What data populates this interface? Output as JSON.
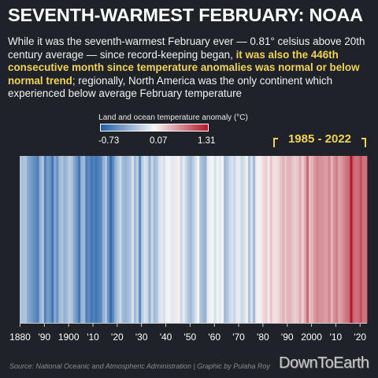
{
  "title": "SEVENTH-WARMEST FEBRUARY: NOAA",
  "subtitle": {
    "part1": "While it was the seventh-warmest February ever — 0.81° celsius above 20th century average — since record-keeping began, ",
    "highlight": "it was also the 446th consecutive month since temperature anomalies was normal or below normal trend",
    "part2": "; regionally, North America was the only continent which experienced below average February temperature"
  },
  "colors": {
    "cold": "#1f5fa8",
    "neutral": "#f7f7f7",
    "warm": "#b2182b",
    "highlight": "#f0d35a",
    "background": "#1f2329"
  },
  "chart_data": {
    "type": "heatmap",
    "legend_title": "Land and ocean temperature anomaly (°C)",
    "scale": {
      "min": -0.73,
      "mid": 0.07,
      "max": 1.31,
      "min_label": "-0.73",
      "mid_label": "0.07",
      "max_label": "1.31"
    },
    "period_label": "1985 - 2022",
    "period_range": [
      1985,
      2022
    ],
    "x_range": [
      1880,
      2022
    ],
    "x_ticks": [
      {
        "year": 1880,
        "label": "1880"
      },
      {
        "year": 1890,
        "label": "'90"
      },
      {
        "year": 1900,
        "label": "1900"
      },
      {
        "year": 1910,
        "label": "'10"
      },
      {
        "year": 1920,
        "label": "'20"
      },
      {
        "year": 1930,
        "label": "'30"
      },
      {
        "year": 1940,
        "label": "'40"
      },
      {
        "year": 1950,
        "label": "'50"
      },
      {
        "year": 1960,
        "label": "'60"
      },
      {
        "year": 1970,
        "label": "'70"
      },
      {
        "year": 1980,
        "label": "'80"
      },
      {
        "year": 1990,
        "label": "'90"
      },
      {
        "year": 2000,
        "label": "2000"
      },
      {
        "year": 2010,
        "label": "'10"
      },
      {
        "year": 2020,
        "label": "'20"
      }
    ],
    "years": [
      1880,
      1881,
      1882,
      1883,
      1884,
      1885,
      1886,
      1887,
      1888,
      1889,
      1890,
      1891,
      1892,
      1893,
      1894,
      1895,
      1896,
      1897,
      1898,
      1899,
      1900,
      1901,
      1902,
      1903,
      1904,
      1905,
      1906,
      1907,
      1908,
      1909,
      1910,
      1911,
      1912,
      1913,
      1914,
      1915,
      1916,
      1917,
      1918,
      1919,
      1920,
      1921,
      1922,
      1923,
      1924,
      1925,
      1926,
      1927,
      1928,
      1929,
      1930,
      1931,
      1932,
      1933,
      1934,
      1935,
      1936,
      1937,
      1938,
      1939,
      1940,
      1941,
      1942,
      1943,
      1944,
      1945,
      1946,
      1947,
      1948,
      1949,
      1950,
      1951,
      1952,
      1953,
      1954,
      1955,
      1956,
      1957,
      1958,
      1959,
      1960,
      1961,
      1962,
      1963,
      1964,
      1965,
      1966,
      1967,
      1968,
      1969,
      1970,
      1971,
      1972,
      1973,
      1974,
      1975,
      1976,
      1977,
      1978,
      1979,
      1980,
      1981,
      1982,
      1983,
      1984,
      1985,
      1986,
      1987,
      1988,
      1989,
      1990,
      1991,
      1992,
      1993,
      1994,
      1995,
      1996,
      1997,
      1998,
      1999,
      2000,
      2001,
      2002,
      2003,
      2004,
      2005,
      2006,
      2007,
      2008,
      2009,
      2010,
      2011,
      2012,
      2013,
      2014,
      2015,
      2016,
      2017,
      2018,
      2019,
      2020,
      2021,
      2022
    ],
    "values": [
      -0.2,
      -0.22,
      -0.2,
      -0.35,
      -0.4,
      -0.45,
      -0.5,
      -0.55,
      -0.3,
      -0.2,
      -0.55,
      -0.4,
      -0.45,
      -0.6,
      -0.35,
      -0.45,
      -0.25,
      -0.2,
      -0.3,
      -0.25,
      -0.15,
      -0.2,
      -0.35,
      -0.45,
      -0.6,
      -0.3,
      -0.25,
      -0.55,
      -0.5,
      -0.6,
      -0.55,
      -0.6,
      -0.55,
      -0.5,
      -0.3,
      -0.2,
      -0.45,
      -0.65,
      -0.5,
      -0.3,
      -0.2,
      -0.1,
      -0.25,
      -0.3,
      -0.25,
      -0.2,
      -0.05,
      -0.25,
      -0.15,
      -0.5,
      -0.15,
      -0.05,
      -0.1,
      -0.3,
      -0.1,
      -0.25,
      -0.2,
      -0.05,
      0.0,
      -0.05,
      0.1,
      0.05,
      0.0,
      0.0,
      0.15,
      0.05,
      -0.1,
      0.0,
      -0.1,
      -0.2,
      -0.25,
      -0.15,
      -0.05,
      0.05,
      -0.2,
      -0.25,
      -0.3,
      0.0,
      0.1,
      0.05,
      -0.05,
      0.05,
      0.0,
      0.05,
      -0.25,
      -0.2,
      -0.1,
      -0.05,
      -0.1,
      0.0,
      0.0,
      -0.1,
      -0.05,
      0.1,
      -0.2,
      -0.05,
      -0.25,
      0.15,
      0.05,
      0.15,
      0.25,
      0.3,
      0.15,
      0.35,
      0.2,
      0.2,
      0.25,
      0.35,
      0.45,
      0.35,
      0.45,
      0.45,
      0.35,
      0.3,
      0.35,
      0.5,
      0.3,
      0.5,
      0.85,
      0.4,
      0.45,
      0.6,
      0.7,
      0.65,
      0.65,
      0.6,
      0.6,
      0.7,
      0.45,
      0.65,
      0.75,
      0.55,
      0.6,
      0.7,
      0.8,
      0.85,
      1.31,
      0.9,
      0.8,
      0.85,
      1.0,
      0.8,
      0.81
    ]
  },
  "source": "Source: National Oceanic and Atmospheric Administration | Graphic by Pulaha Roy",
  "logo": "DownToEarth"
}
